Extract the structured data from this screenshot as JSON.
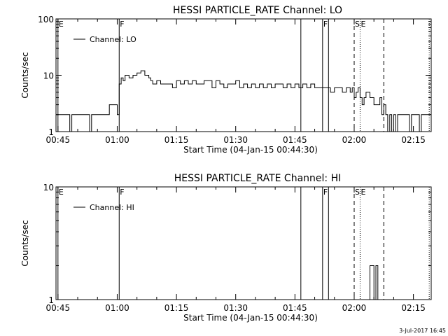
{
  "footer": {
    "date_stamp": "3-Jul-2017 16:45"
  },
  "chart_data": [
    {
      "type": "line",
      "title": "HESSI PARTICLE_RATE Channel: LO",
      "xlabel": "Start Time (04-Jan-15 00:44:30)",
      "ylabel": "Counts/sec",
      "yscale": "log",
      "ylim": [
        1,
        100
      ],
      "y_ticks": [
        {
          "value": 1,
          "label": "1"
        },
        {
          "value": 10,
          "label": "10"
        },
        {
          "value": 100,
          "label": "100"
        }
      ],
      "xlim_minutes": [
        44.5,
        139.5
      ],
      "x_ticks": [
        {
          "minutes": 45,
          "label": "00:45"
        },
        {
          "minutes": 60,
          "label": "01:00"
        },
        {
          "minutes": 75,
          "label": "01:15"
        },
        {
          "minutes": 90,
          "label": "01:30"
        },
        {
          "minutes": 105,
          "label": "01:45"
        },
        {
          "minutes": 120,
          "label": "02:00"
        },
        {
          "minutes": 135,
          "label": "02:15"
        }
      ],
      "legend": {
        "position": "top-left",
        "entry": "Channel: LO"
      },
      "events": [
        {
          "minutes": 45,
          "label": "E",
          "style": "solid"
        },
        {
          "minutes": 60.5,
          "label": "F",
          "style": "solid"
        },
        {
          "minutes": 106.5,
          "label": "",
          "style": "solid"
        },
        {
          "minutes": 112,
          "label": "F",
          "style": "solid"
        },
        {
          "minutes": 113.5,
          "label": "",
          "style": "solid"
        },
        {
          "minutes": 120,
          "label": "S",
          "style": "dashed"
        },
        {
          "minutes": 121.5,
          "label": "E",
          "style": "dotted"
        },
        {
          "minutes": 127.5,
          "label": "",
          "style": "dashed"
        },
        {
          "minutes": 139,
          "label": "",
          "style": "dotted"
        }
      ],
      "series": [
        {
          "x": [
            44.5,
            47.5,
            48,
            48.5,
            52.5,
            53,
            53.5,
            55,
            56,
            56.5,
            57.5,
            58,
            59.5,
            60,
            60.5,
            60.5,
            61,
            61.5,
            62,
            63,
            64,
            65,
            66,
            67,
            68,
            68.5,
            69,
            70,
            71,
            72,
            73,
            74,
            75,
            76,
            77,
            78,
            79,
            80,
            81,
            82,
            83,
            84,
            85,
            86,
            87,
            88,
            89,
            90,
            91,
            92,
            93,
            94,
            95,
            96,
            97,
            98,
            99,
            100,
            101,
            102,
            103,
            104,
            105,
            106,
            107,
            108,
            109,
            110,
            111,
            112,
            113,
            114,
            115,
            116,
            117,
            118,
            119,
            119.5,
            120,
            120.5,
            121,
            121.5,
            122,
            122.5,
            123,
            124,
            125,
            126,
            126.5,
            127,
            127.5,
            128,
            128.5,
            129,
            129.5,
            130,
            130.5,
            131,
            132,
            133,
            134,
            134.5,
            135,
            136,
            136.5,
            137,
            138,
            139,
            139.5
          ],
          "y": [
            2,
            2,
            1,
            2,
            2,
            1,
            2,
            2,
            2,
            2,
            2,
            3,
            3,
            2,
            2,
            7,
            9,
            8,
            10,
            9,
            10,
            11,
            12,
            10,
            9,
            8,
            7,
            8,
            7,
            7,
            7,
            6,
            8,
            7,
            8,
            7,
            8,
            7,
            7,
            8,
            8,
            6,
            8,
            7,
            6,
            7,
            7,
            8,
            6,
            7,
            6,
            7,
            6,
            7,
            6,
            7,
            6,
            7,
            7,
            6,
            7,
            6,
            7,
            6,
            7,
            6,
            7,
            6,
            6,
            6,
            6,
            5,
            6,
            6,
            5,
            6,
            5,
            6,
            4,
            5,
            6,
            4,
            3,
            4,
            5,
            4,
            3,
            3,
            4,
            2,
            3,
            2,
            1,
            2,
            1,
            2,
            1,
            2,
            2,
            2,
            1,
            2,
            2,
            2,
            1,
            2,
            2,
            2,
            2
          ]
        }
      ]
    },
    {
      "type": "line",
      "title": "HESSI PARTICLE_RATE Channel: HI",
      "xlabel": "Start Time (04-Jan-15 00:44:30)",
      "ylabel": "Counts/sec",
      "yscale": "log",
      "ylim": [
        1,
        10
      ],
      "y_ticks": [
        {
          "value": 1,
          "label": "1"
        },
        {
          "value": 10,
          "label": "10"
        }
      ],
      "xlim_minutes": [
        44.5,
        139.5
      ],
      "x_ticks": [
        {
          "minutes": 45,
          "label": "00:45"
        },
        {
          "minutes": 60,
          "label": "01:00"
        },
        {
          "minutes": 75,
          "label": "01:15"
        },
        {
          "minutes": 90,
          "label": "01:30"
        },
        {
          "minutes": 105,
          "label": "01:45"
        },
        {
          "minutes": 120,
          "label": "02:00"
        },
        {
          "minutes": 135,
          "label": "02:15"
        }
      ],
      "legend": {
        "position": "top-left",
        "entry": "Channel: HI"
      },
      "events": [
        {
          "minutes": 45,
          "label": "E",
          "style": "solid"
        },
        {
          "minutes": 60.5,
          "label": "F",
          "style": "solid"
        },
        {
          "minutes": 106.5,
          "label": "",
          "style": "solid"
        },
        {
          "minutes": 112,
          "label": "F",
          "style": "solid"
        },
        {
          "minutes": 113.5,
          "label": "",
          "style": "solid"
        },
        {
          "minutes": 120,
          "label": "S",
          "style": "dashed"
        },
        {
          "minutes": 121.5,
          "label": "E",
          "style": "dotted"
        },
        {
          "minutes": 127.5,
          "label": "",
          "style": "dashed"
        },
        {
          "minutes": 139,
          "label": "",
          "style": "dotted"
        }
      ],
      "series": [
        {
          "x": [
            123.5,
            124,
            124.5,
            125,
            125.5,
            126
          ],
          "y": [
            1,
            2,
            2,
            1,
            2,
            1
          ]
        }
      ]
    }
  ]
}
